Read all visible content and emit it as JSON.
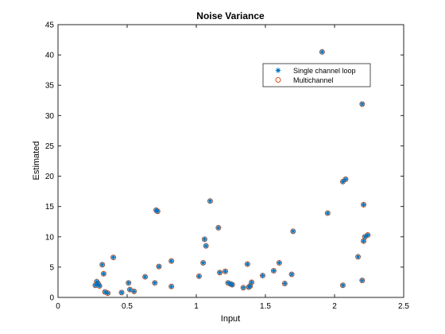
{
  "chart_data": {
    "type": "scatter",
    "title": "Noise Variance",
    "xlabel": "Input",
    "ylabel": "Estimated",
    "xlim": [
      0,
      2.5
    ],
    "ylim": [
      0,
      45
    ],
    "xticks": [
      "0",
      "0.5",
      "1",
      "1.5",
      "2",
      "2.5"
    ],
    "yticks": [
      "0",
      "5",
      "10",
      "15",
      "20",
      "25",
      "30",
      "35",
      "40",
      "45"
    ],
    "grid": false,
    "legend_position": "top-right",
    "x": [
      0.27,
      0.28,
      0.29,
      0.3,
      0.32,
      0.33,
      0.34,
      0.36,
      0.4,
      0.46,
      0.51,
      0.52,
      0.55,
      0.63,
      0.7,
      0.71,
      0.72,
      0.73,
      0.82,
      0.82,
      1.02,
      1.05,
      1.06,
      1.07,
      1.1,
      1.16,
      1.17,
      1.21,
      1.23,
      1.25,
      1.26,
      1.34,
      1.37,
      1.38,
      1.39,
      1.4,
      1.48,
      1.56,
      1.6,
      1.64,
      1.69,
      1.7,
      1.91,
      1.95,
      2.06,
      2.06,
      2.08,
      2.17,
      2.2,
      2.2,
      2.21,
      2.21,
      2.22,
      2.24
    ],
    "series": [
      {
        "name": "Single channel loop",
        "color": "#0072BD",
        "marker": "asterisk",
        "values": [
          2.0,
          2.6,
          2.3,
          1.9,
          5.4,
          3.9,
          0.9,
          0.7,
          6.6,
          0.8,
          2.4,
          1.3,
          1.0,
          3.4,
          2.4,
          14.4,
          14.2,
          5.1,
          1.8,
          6.0,
          3.5,
          5.7,
          9.6,
          8.5,
          15.9,
          11.5,
          4.1,
          4.3,
          2.4,
          2.2,
          2.1,
          1.6,
          5.5,
          1.7,
          1.9,
          2.5,
          3.6,
          4.4,
          5.7,
          2.3,
          3.8,
          10.9,
          40.5,
          13.9,
          19.1,
          2.0,
          19.5,
          6.7,
          31.9,
          2.8,
          15.3,
          9.3,
          10.0,
          10.3
        ]
      },
      {
        "name": "Multichannel",
        "color": "#D95319",
        "marker": "circle",
        "values": [
          2.0,
          2.6,
          2.3,
          1.9,
          5.4,
          3.9,
          0.9,
          0.7,
          6.6,
          0.8,
          2.4,
          1.3,
          1.0,
          3.4,
          2.4,
          14.4,
          14.2,
          5.1,
          1.8,
          6.0,
          3.5,
          5.7,
          9.6,
          8.5,
          15.9,
          11.5,
          4.1,
          4.3,
          2.4,
          2.2,
          2.1,
          1.6,
          5.5,
          1.7,
          1.9,
          2.5,
          3.6,
          4.4,
          5.7,
          2.3,
          3.8,
          10.9,
          40.5,
          13.9,
          19.1,
          2.0,
          19.5,
          6.7,
          31.9,
          2.8,
          15.3,
          9.3,
          10.0,
          10.3
        ]
      }
    ]
  }
}
